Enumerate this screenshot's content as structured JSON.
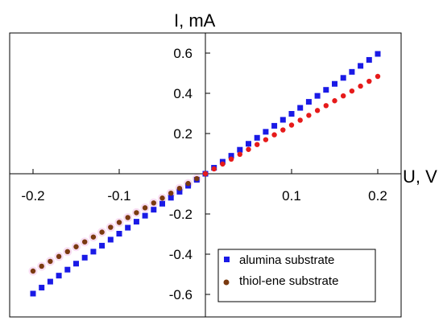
{
  "chart_data": {
    "type": "scatter",
    "xlabel": "U, V",
    "ylabel": "I, mA",
    "xlim": [
      -0.22,
      0.22
    ],
    "ylim": [
      -0.65,
      0.72
    ],
    "x_ticks": [
      -0.2,
      -0.1,
      0.1,
      0.2
    ],
    "x_tick_labels": [
      "-0.2",
      "-0.1",
      "0.1",
      "0.2"
    ],
    "y_ticks": [
      -0.6,
      -0.4,
      -0.2,
      0.2,
      0.4,
      0.6
    ],
    "y_tick_labels": [
      "-0.6",
      "-0.4",
      "-0.2",
      "0.2",
      "0.4",
      "0.6"
    ],
    "grid": false,
    "axes_through_origin": true,
    "legend_position": "bottom-right",
    "x_range": [
      -0.2,
      0.2
    ],
    "x_step": 0.01,
    "series": [
      {
        "name": "alumina substrate",
        "marker": "square",
        "color": "#1a1ae6",
        "slope": 2.98,
        "intercept": 0.0
      },
      {
        "name": "thiol-ene substrate",
        "marker": "circle",
        "color": "#e61a1a",
        "color_negative": "#7a3a10",
        "slope": 2.42,
        "intercept": 0.0
      }
    ]
  }
}
